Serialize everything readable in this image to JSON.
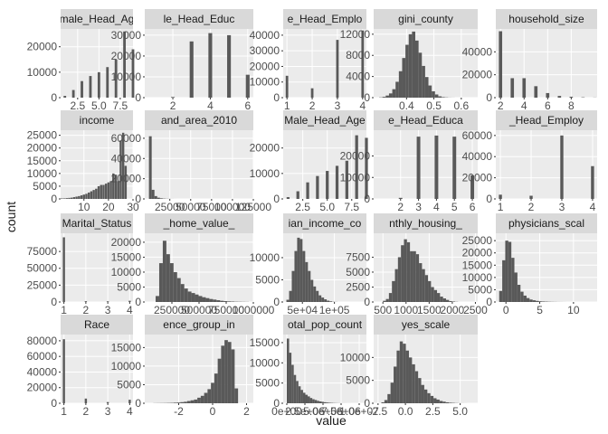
{
  "figure": {
    "ylabel": "count",
    "xlabel": "value",
    "colors": {
      "panel_bg": "#ebebeb",
      "strip_bg": "#d9d9d9",
      "grid_major": "#ffffff",
      "bar": "#595959",
      "text": "#1a1a1a",
      "tick_text": "#4d4d4d"
    }
  },
  "chart_data": [
    {
      "type": "bar",
      "title": "male_Head_Ag",
      "xlim": [
        0.5,
        9
      ],
      "ylim": [
        0,
        27000
      ],
      "x": [
        1,
        2,
        3,
        4,
        5,
        6,
        7,
        8,
        9
      ],
      "values": [
        700,
        3000,
        6500,
        8500,
        10000,
        12000,
        15000,
        26000,
        19000
      ],
      "bar_width": 0.3,
      "x_ticks": [
        2.5,
        5.0,
        7.5
      ],
      "x_tick_labels": [
        "2.5",
        "5.0",
        "7.5"
      ],
      "y_ticks": [
        0,
        10000,
        20000
      ],
      "y_tick_labels": [
        "0",
        "10000",
        "20000"
      ]
    },
    {
      "type": "bar",
      "title": "le_Head_Educ",
      "xlim": [
        0.5,
        6.3
      ],
      "ylim": [
        0,
        33000
      ],
      "x": [
        1,
        2,
        3,
        4,
        5,
        6
      ],
      "values": [
        0,
        300,
        27000,
        31000,
        30000,
        11000
      ],
      "bar_width": 0.2,
      "x_ticks": [
        2,
        4,
        6
      ],
      "x_tick_labels": [
        "2",
        "4",
        "6"
      ],
      "y_ticks": [
        0,
        10000,
        20000,
        30000
      ],
      "y_tick_labels": [
        "0",
        "10000",
        "20000",
        "30000"
      ]
    },
    {
      "type": "bar",
      "title": "e_Head_Emplo",
      "xlim": [
        0.85,
        4.15
      ],
      "ylim": [
        0,
        44000
      ],
      "x": [
        1,
        2,
        3,
        4
      ],
      "values": [
        14000,
        6000,
        37000,
        43000
      ],
      "bar_width": 0.1,
      "x_ticks": [
        1,
        2,
        3,
        4
      ],
      "x_tick_labels": [
        "1",
        "2",
        "3",
        "4"
      ],
      "y_ticks": [
        0,
        10000,
        20000,
        30000,
        40000
      ],
      "y_tick_labels": [
        "0",
        "10000",
        "20000",
        "30000",
        "40000"
      ]
    },
    {
      "type": "hist",
      "title": "gini_county",
      "xlim": [
        0.28,
        0.66
      ],
      "ylim": [
        0,
        13000
      ],
      "bin_start": 0.3,
      "bin_width": 0.012,
      "values": [
        50,
        150,
        400,
        800,
        1600,
        3000,
        5000,
        7500,
        10000,
        12000,
        12500,
        10800,
        8500,
        6000,
        3900,
        2300,
        1200,
        600,
        250,
        100,
        50,
        20,
        10
      ],
      "x_ticks": [
        0.4,
        0.5,
        0.6
      ],
      "x_tick_labels": [
        "0.4",
        "0.5",
        "0.6"
      ],
      "y_ticks": [
        0,
        4000,
        8000,
        12000
      ],
      "y_tick_labels": [
        "0",
        "4000",
        "8000",
        "12000"
      ]
    },
    {
      "type": "bar",
      "title": "household_size",
      "xlim": [
        1.6,
        10.2
      ],
      "ylim": [
        0,
        60000
      ],
      "x": [
        2,
        3,
        4,
        5,
        6,
        7,
        8,
        9,
        10
      ],
      "values": [
        58000,
        17000,
        17000,
        10000,
        4000,
        1500,
        800,
        300,
        100
      ],
      "bar_width": 0.28,
      "x_ticks": [
        2,
        4,
        6,
        8
      ],
      "x_tick_labels": [
        "2",
        "4",
        "6",
        "8"
      ],
      "y_ticks": [
        0,
        20000,
        40000
      ],
      "y_tick_labels": [
        "0",
        "20000",
        "40000"
      ]
    },
    {
      "type": "bar",
      "title": "income",
      "xlim": [
        0.5,
        30
      ],
      "ylim": [
        0,
        27000
      ],
      "x": [
        1,
        2,
        3,
        4,
        5,
        6,
        7,
        8,
        9,
        10,
        11,
        12,
        13,
        14,
        15,
        16,
        17,
        18,
        19,
        20,
        21,
        22,
        23,
        24,
        25,
        26,
        27
      ],
      "values": [
        200,
        200,
        300,
        400,
        500,
        700,
        900,
        1100,
        1400,
        1700,
        2000,
        2500,
        3000,
        3500,
        4000,
        5000,
        5500,
        5500,
        6000,
        6500,
        7000,
        10000,
        9500,
        7000,
        23000,
        26000,
        13000
      ],
      "bar_width": 0.9,
      "x_ticks": [
        10,
        20,
        30
      ],
      "x_tick_labels": [
        "10",
        "20",
        "30"
      ],
      "y_ticks": [
        0,
        5000,
        10000,
        15000,
        20000,
        25000
      ],
      "y_tick_labels": [
        "0",
        "5000",
        "10000",
        "15000",
        "20000",
        "25000"
      ]
    },
    {
      "type": "hist",
      "title": "and_area_2010",
      "xlim": [
        -5000,
        125000
      ],
      "ylim": [
        0,
        68000
      ],
      "bin_start": 0,
      "bin_width": 3300,
      "values": [
        62000,
        9000,
        2800,
        1200,
        600,
        300,
        150,
        80,
        40,
        20,
        10,
        5,
        0,
        0,
        0,
        0,
        0,
        0,
        0,
        0,
        0,
        0,
        0,
        0,
        0,
        0,
        0,
        0,
        0,
        0,
        0,
        0,
        0,
        0,
        0,
        0,
        2
      ],
      "x_ticks": [
        25000,
        50000,
        75000,
        100000,
        125000
      ],
      "x_tick_labels": [
        "25000",
        "50000",
        "75000",
        "100000",
        "125000"
      ],
      "y_ticks": [
        0,
        20000,
        40000,
        60000
      ],
      "y_tick_labels": [
        "0",
        "20000",
        "40000",
        "60000"
      ]
    },
    {
      "type": "bar",
      "title": "Male_Head_Age",
      "xlim": [
        0.5,
        9
      ],
      "ylim": [
        0,
        27000
      ],
      "x": [
        1,
        2,
        3,
        4,
        5,
        6,
        7,
        8,
        9
      ],
      "values": [
        700,
        3000,
        6500,
        9000,
        11000,
        13000,
        15000,
        25000,
        24000
      ],
      "bar_width": 0.3,
      "x_ticks": [
        2.5,
        5.0,
        7.5
      ],
      "x_tick_labels": [
        "2.5",
        "5.0",
        "7.5"
      ],
      "y_ticks": [
        0,
        10000,
        20000
      ],
      "y_tick_labels": [
        "0",
        "10000",
        "20000"
      ]
    },
    {
      "type": "bar",
      "title": "e_Head_Educa",
      "xlim": [
        0.5,
        6.3
      ],
      "ylim": [
        0,
        32000
      ],
      "x": [
        1,
        2,
        3,
        4,
        5,
        6
      ],
      "values": [
        0,
        500,
        29000,
        29500,
        29000,
        11000
      ],
      "bar_width": 0.2,
      "x_ticks": [
        2,
        3,
        4,
        5,
        6
      ],
      "x_tick_labels": [
        "2",
        "3",
        "4",
        "5",
        "6"
      ],
      "y_ticks": [
        0,
        10000,
        20000
      ],
      "y_tick_labels": [
        "0",
        "10000",
        "20000"
      ]
    },
    {
      "type": "bar",
      "title": "_Head_Employ",
      "xlim": [
        0.85,
        4.15
      ],
      "ylim": [
        0,
        65000
      ],
      "x": [
        1,
        2,
        3,
        4
      ],
      "values": [
        4000,
        3000,
        60000,
        31000
      ],
      "bar_width": 0.1,
      "x_ticks": [
        1,
        2,
        3,
        4
      ],
      "x_tick_labels": [
        "1",
        "2",
        "3",
        "4"
      ],
      "y_ticks": [
        0,
        20000,
        40000,
        60000
      ],
      "y_tick_labels": [
        "0",
        "20000",
        "40000",
        "60000"
      ]
    },
    {
      "type": "bar",
      "title": "Marital_Status",
      "xlim": [
        0.85,
        4.15
      ],
      "ylim": [
        0,
        102000
      ],
      "x": [
        1,
        2,
        3,
        4
      ],
      "values": [
        96000,
        1200,
        1000,
        1800
      ],
      "bar_width": 0.1,
      "x_ticks": [
        1,
        2,
        3,
        4
      ],
      "x_tick_labels": [
        "1",
        "2",
        "3",
        "4"
      ],
      "y_ticks": [
        0,
        25000,
        50000,
        75000
      ],
      "y_tick_labels": [
        "0",
        "25000",
        "50000",
        "75000"
      ]
    },
    {
      "type": "hist",
      "title": "_home_value_",
      "xlim": [
        0,
        1000000
      ],
      "ylim": [
        0,
        23000
      ],
      "bin_start": 100000,
      "bin_width": 33000,
      "values": [
        2000,
        13000,
        20500,
        16000,
        13000,
        10000,
        8000,
        6000,
        4500,
        3500,
        3000,
        2500,
        2000,
        1600,
        1300,
        1000,
        800,
        600,
        400,
        300,
        200,
        150,
        100,
        80,
        60,
        40
      ],
      "x_ticks": [
        250000,
        500000,
        750000,
        1000000
      ],
      "x_tick_labels": [
        "250000",
        "500000",
        "750000",
        "1000000"
      ],
      "y_ticks": [
        0,
        5000,
        10000,
        15000,
        20000
      ],
      "y_tick_labels": [
        "0",
        "5000",
        "10000",
        "15000",
        "20000"
      ]
    },
    {
      "type": "hist",
      "title": "ian_income_co",
      "xlim": [
        20000,
        150000
      ],
      "ylim": [
        0,
        15500
      ],
      "bin_start": 25000,
      "bin_width": 4200,
      "values": [
        500,
        2500,
        7000,
        11500,
        14500,
        14200,
        11500,
        9000,
        7000,
        5000,
        3500,
        2500,
        1500,
        1000,
        600,
        300,
        150,
        50,
        20
      ],
      "x_ticks": [
        50000,
        100000
      ],
      "x_tick_labels": [
        "5e+04",
        "1e+05"
      ],
      "y_ticks": [
        0,
        5000,
        10000
      ],
      "y_tick_labels": [
        "0",
        "5000",
        "10000"
      ]
    },
    {
      "type": "hist",
      "title": "nthly_housing_",
      "xlim": [
        300,
        2550
      ],
      "ylim": [
        0,
        11500
      ],
      "bin_start": 500,
      "bin_width": 65,
      "values": [
        200,
        500,
        1500,
        3500,
        5500,
        7500,
        9500,
        10500,
        10000,
        8500,
        8500,
        8000,
        6500,
        5500,
        4500,
        3500,
        2500,
        2000,
        1500,
        900,
        600,
        350,
        150,
        80,
        30
      ],
      "x_ticks": [
        500,
        1000,
        1500,
        2000,
        2500
      ],
      "x_tick_labels": [
        "500",
        "1000",
        "1500",
        "2000",
        "2500"
      ],
      "y_ticks": [
        0,
        2500,
        5000,
        7500
      ],
      "y_tick_labels": [
        "0",
        "2500",
        "5000",
        "7500"
      ]
    },
    {
      "type": "hist",
      "title": "physicians_scal",
      "xlim": [
        -1.5,
        13.5
      ],
      "ylim": [
        0,
        28000
      ],
      "bin_start": -1,
      "bin_width": 0.45,
      "values": [
        4500,
        17000,
        25000,
        24500,
        18000,
        12000,
        7000,
        4200,
        2600,
        1600,
        1000,
        700,
        450,
        300,
        200,
        150,
        100,
        70,
        50,
        30,
        20,
        10
      ],
      "x_ticks": [
        0,
        5,
        10
      ],
      "x_tick_labels": [
        "0",
        "5",
        "10"
      ],
      "y_ticks": [
        0,
        5000,
        10000,
        15000,
        20000,
        25000
      ],
      "y_tick_labels": [
        "0",
        "5000",
        "10000",
        "15000",
        "20000",
        "25000"
      ]
    },
    {
      "type": "bar",
      "title": "Race",
      "xlim": [
        0.85,
        4.15
      ],
      "ylim": [
        0,
        88000
      ],
      "x": [
        1,
        2,
        3,
        4
      ],
      "values": [
        82000,
        6000,
        1500,
        4500
      ],
      "bar_width": 0.1,
      "x_ticks": [
        1,
        2,
        3,
        4
      ],
      "x_tick_labels": [
        "1",
        "2",
        "3",
        "4"
      ],
      "y_ticks": [
        0,
        20000,
        40000,
        60000,
        80000
      ],
      "y_tick_labels": [
        "0",
        "20000",
        "40000",
        "60000",
        "80000"
      ]
    },
    {
      "type": "hist",
      "title": "ence_group_in",
      "xlim": [
        -4.0,
        2.4
      ],
      "ylim": [
        0,
        18500
      ],
      "bin_start": -3.5,
      "bin_width": 0.2,
      "values": [
        30,
        40,
        50,
        60,
        80,
        100,
        150,
        200,
        300,
        400,
        600,
        800,
        1000,
        1500,
        2000,
        2800,
        3800,
        5500,
        8000,
        12000,
        15500,
        17000,
        16500,
        14500,
        4000
      ],
      "x_ticks": [
        -2,
        0,
        2
      ],
      "x_tick_labels": [
        "-2",
        "0",
        "2"
      ],
      "y_ticks": [
        0,
        5000,
        10000,
        15000
      ],
      "y_tick_labels": [
        "0",
        "5000",
        "10000",
        "15000"
      ]
    },
    {
      "type": "hist",
      "title": "otal_pop_count",
      "xlim": [
        -500000,
        11000000
      ],
      "ylim": [
        0,
        17000
      ],
      "bin_start": 0,
      "bin_width": 320000,
      "values": [
        16000,
        12500,
        9500,
        7000,
        5500,
        4200,
        3300,
        2600,
        2100,
        1700,
        1300,
        1000,
        800,
        600,
        450,
        350,
        250,
        180,
        130,
        90,
        60,
        40,
        25,
        15,
        10,
        8,
        5,
        4,
        3,
        2,
        1,
        1,
        1
      ],
      "x_ticks": [
        0,
        2500000,
        5000000,
        7500000,
        10000000
      ],
      "x_tick_labels": [
        "0e+00",
        "2.5e+06",
        "5.0e+06",
        "7.5e+06",
        "1.0e+07"
      ],
      "y_ticks": [
        0,
        5000,
        10000,
        15000
      ],
      "y_tick_labels": [
        "0",
        "5000",
        "10000",
        "15000"
      ]
    },
    {
      "type": "hist",
      "title": "yes_scale",
      "xlim": [
        -2.9,
        6.6
      ],
      "ylim": [
        0,
        15000
      ],
      "bin_start": -2.2,
      "bin_width": 0.28,
      "values": [
        200,
        700,
        2000,
        4500,
        8000,
        11500,
        13500,
        13000,
        11500,
        10000,
        8500,
        7000,
        5500,
        4000,
        3000,
        2200,
        1600,
        1100,
        800,
        500,
        350,
        200,
        120,
        80,
        40,
        20,
        10,
        5
      ],
      "x_ticks": [
        -2.5,
        0.0,
        2.5,
        5.0
      ],
      "x_tick_labels": [
        "-2.5",
        "0.0",
        "2.5",
        "5.0"
      ],
      "y_ticks": [
        0,
        5000,
        10000
      ],
      "y_tick_labels": [
        "0",
        "5000",
        "10000"
      ]
    }
  ]
}
